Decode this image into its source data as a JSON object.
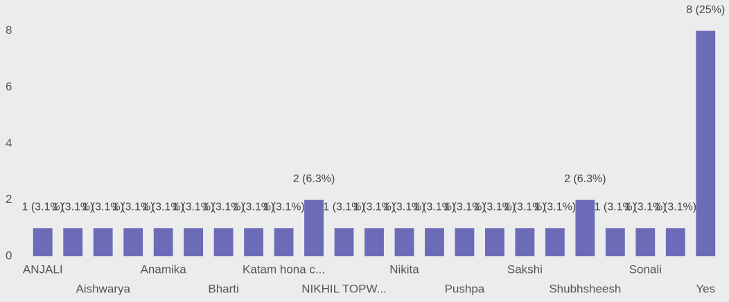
{
  "chart_data": {
    "type": "bar",
    "categories": [
      "ANJALI",
      null,
      "Aishwarya",
      null,
      "Anamika",
      null,
      "Bharti",
      null,
      "Katam hona c...",
      null,
      "NIKHIL TOPW...",
      null,
      "Nikita",
      null,
      "Pushpa",
      null,
      "Sakshi",
      null,
      "Shubhsheesh",
      null,
      "Sonali",
      null,
      "Yes"
    ],
    "values": [
      1,
      1,
      1,
      1,
      1,
      1,
      1,
      1,
      1,
      2,
      1,
      1,
      1,
      1,
      1,
      1,
      1,
      1,
      2,
      1,
      1,
      1,
      8
    ],
    "value_labels": [
      "1 (3.1%)",
      "1 (3.1%)",
      "1 (3.1%)",
      "1 (3.1%)",
      "1 (3.1%)",
      "1 (3.1%)",
      "1 (3.1%)",
      "1 (3.1%)",
      "1 (3.1%)",
      "2 (6.3%)",
      "1 (3.1%)",
      "1 (3.1%)",
      "1 (3.1%)",
      "1 (3.1%)",
      "1 (3.1%)",
      "1 (3.1%)",
      "1 (3.1%)",
      "1 (3.1%)",
      "2 (6.3%)",
      "1 (3.1%)",
      "1 (3.1%)",
      "1 (3.1%)",
      "8 (25%)"
    ],
    "color": "#6b6bb8",
    "ylim": [
      0,
      8.8
    ],
    "yticks": [
      0,
      2,
      4,
      6,
      8
    ],
    "grid": false
  }
}
